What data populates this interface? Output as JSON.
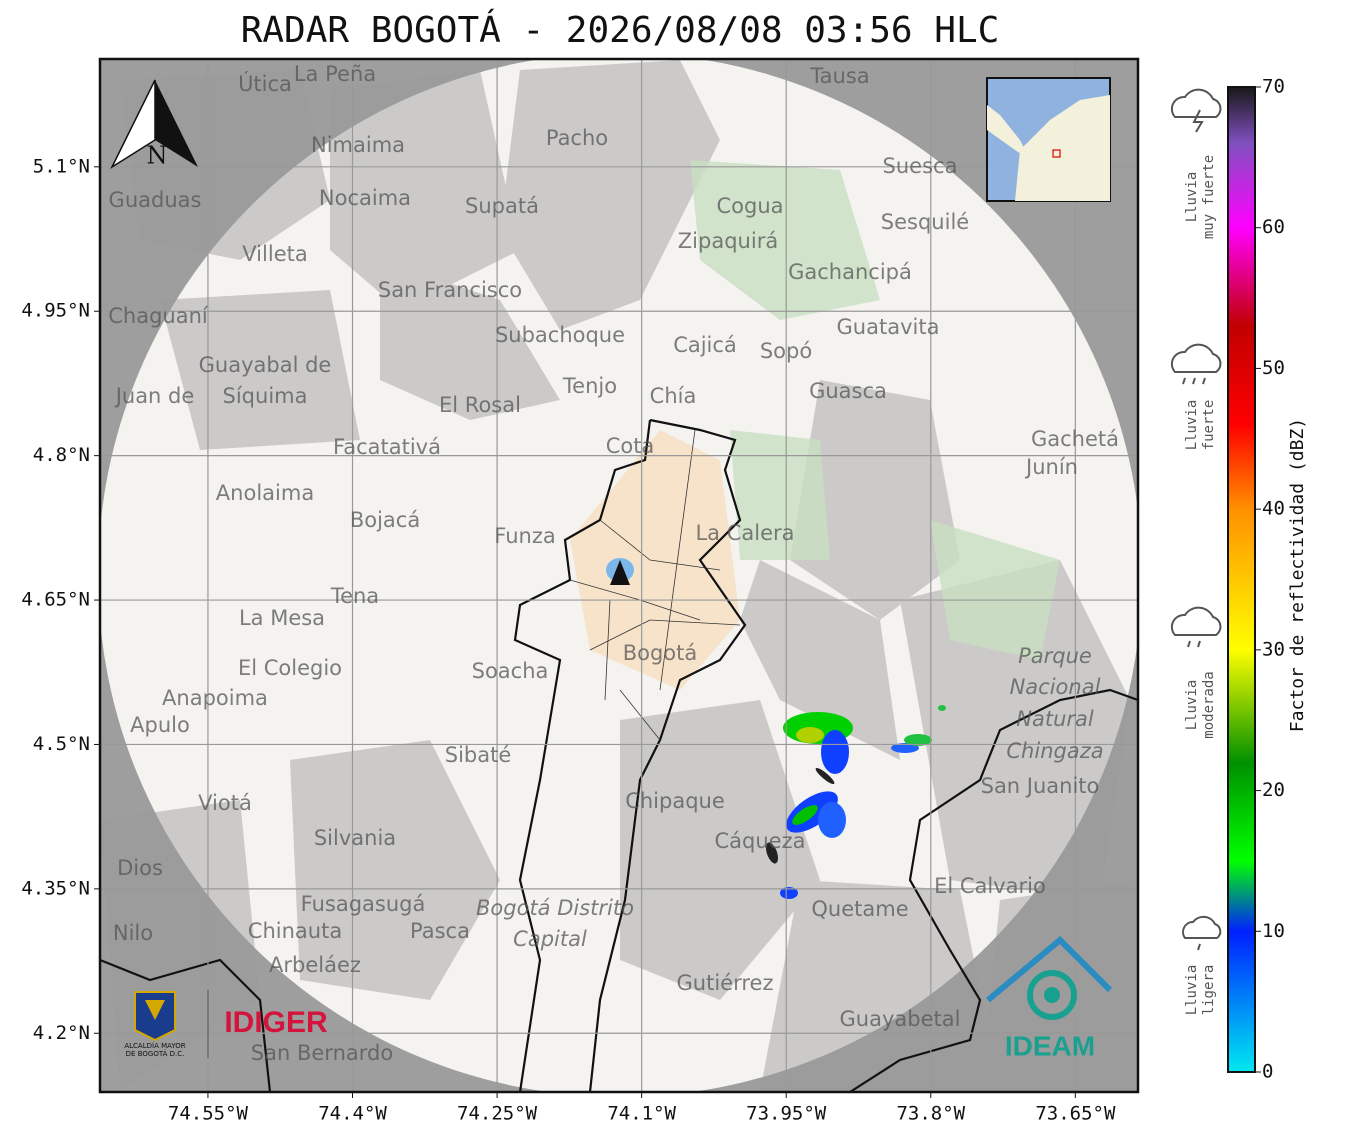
{
  "title": "RADAR BOGOTÁ - 2026/08/08 03:56 HLC",
  "map": {
    "xlim": [
      -74.662,
      -73.585
    ],
    "ylim": [
      4.139,
      5.212
    ],
    "grid": true,
    "xticks": [
      {
        "value": -74.55,
        "label": "74.55°W"
      },
      {
        "value": -74.4,
        "label": "74.4°W"
      },
      {
        "value": -74.25,
        "label": "74.25°W"
      },
      {
        "value": -74.1,
        "label": "74.1°W"
      },
      {
        "value": -73.95,
        "label": "73.95°W"
      },
      {
        "value": -73.8,
        "label": "73.8°W"
      },
      {
        "value": -73.65,
        "label": "73.65°W"
      }
    ],
    "yticks": [
      {
        "value": 5.1,
        "label": "5.1°N"
      },
      {
        "value": 4.95,
        "label": "4.95°N"
      },
      {
        "value": 4.8,
        "label": "4.8°N"
      },
      {
        "value": 4.65,
        "label": "4.65°N"
      },
      {
        "value": 4.5,
        "label": "4.5°N"
      },
      {
        "value": 4.35,
        "label": "4.35°N"
      },
      {
        "value": 4.2,
        "label": "4.2°N"
      }
    ],
    "places": [
      "La Peña",
      "Útica",
      "Tausa",
      "Pacho",
      "Nimaima",
      "Guaduas",
      "Nocaima",
      "Supatá",
      "Suesca",
      "Cogua",
      "Sesquilé",
      "Zipaquirá",
      "Villeta",
      "San Francisco",
      "Gachancipá",
      "Chaguaní",
      "Subachoque",
      "Guatavita",
      "Cajicá",
      "Sopó",
      "Guayabal de",
      "Síquima",
      "Tenjo",
      "Chía",
      "Guasca",
      "Juan de",
      "El Rosal",
      "Facatativá",
      "Cota",
      "Gachetá",
      "Junín",
      "Anolaima",
      "Bojacá",
      "Funza",
      "La Calera",
      "Tena",
      "La Mesa",
      "Bogotá",
      "Soacha",
      "El Colegio",
      "Parque",
      "Nacional",
      "Natural",
      "Chingaza",
      "Anapoima",
      "Apulo",
      "Sibaté",
      "San Juanito",
      "Chipaque",
      "Viotá",
      "Silvania",
      "Cáqueza",
      "El Calvario",
      "Dios",
      "Fusagasugá",
      "Bogotá Distrito",
      "Capital",
      "Quetame",
      "Chinauta",
      "Pasca",
      "Nilo",
      "Arbeláez",
      "Gutiérrez",
      "Guayabetal",
      "San Bernardo"
    ]
  },
  "north_label": "N",
  "logos": {
    "alcaldia": [
      "ALCALDÍA MAYOR",
      "DE BOGOTÁ D.C."
    ],
    "idiger": "IDIGER",
    "ideam": "IDEAM"
  },
  "colorbar": {
    "label": "Factor de reflectividad (dBZ)",
    "lim": [
      0,
      70
    ],
    "ticks": [
      0,
      10,
      20,
      30,
      40,
      50,
      60,
      70
    ],
    "stops": [
      {
        "value": 0,
        "color": "#00e8f0"
      },
      {
        "value": 10,
        "color": "#0020ff"
      },
      {
        "value": 15,
        "color": "#00ff00"
      },
      {
        "value": 22,
        "color": "#009000"
      },
      {
        "value": 30,
        "color": "#ffff00"
      },
      {
        "value": 40,
        "color": "#ff9000"
      },
      {
        "value": 46,
        "color": "#ff0000"
      },
      {
        "value": 53,
        "color": "#c00000"
      },
      {
        "value": 60,
        "color": "#ff00ff"
      },
      {
        "value": 66,
        "color": "#8050c0"
      },
      {
        "value": 70,
        "color": "#181818"
      }
    ]
  },
  "rain_classes": [
    {
      "lines": [
        "Lluvia",
        "ligera"
      ]
    },
    {
      "lines": [
        "Lluvia",
        "moderada"
      ]
    },
    {
      "lines": [
        "Lluvia",
        "fuerte"
      ]
    },
    {
      "lines": [
        "Lluvia",
        "muy fuerte"
      ]
    }
  ]
}
